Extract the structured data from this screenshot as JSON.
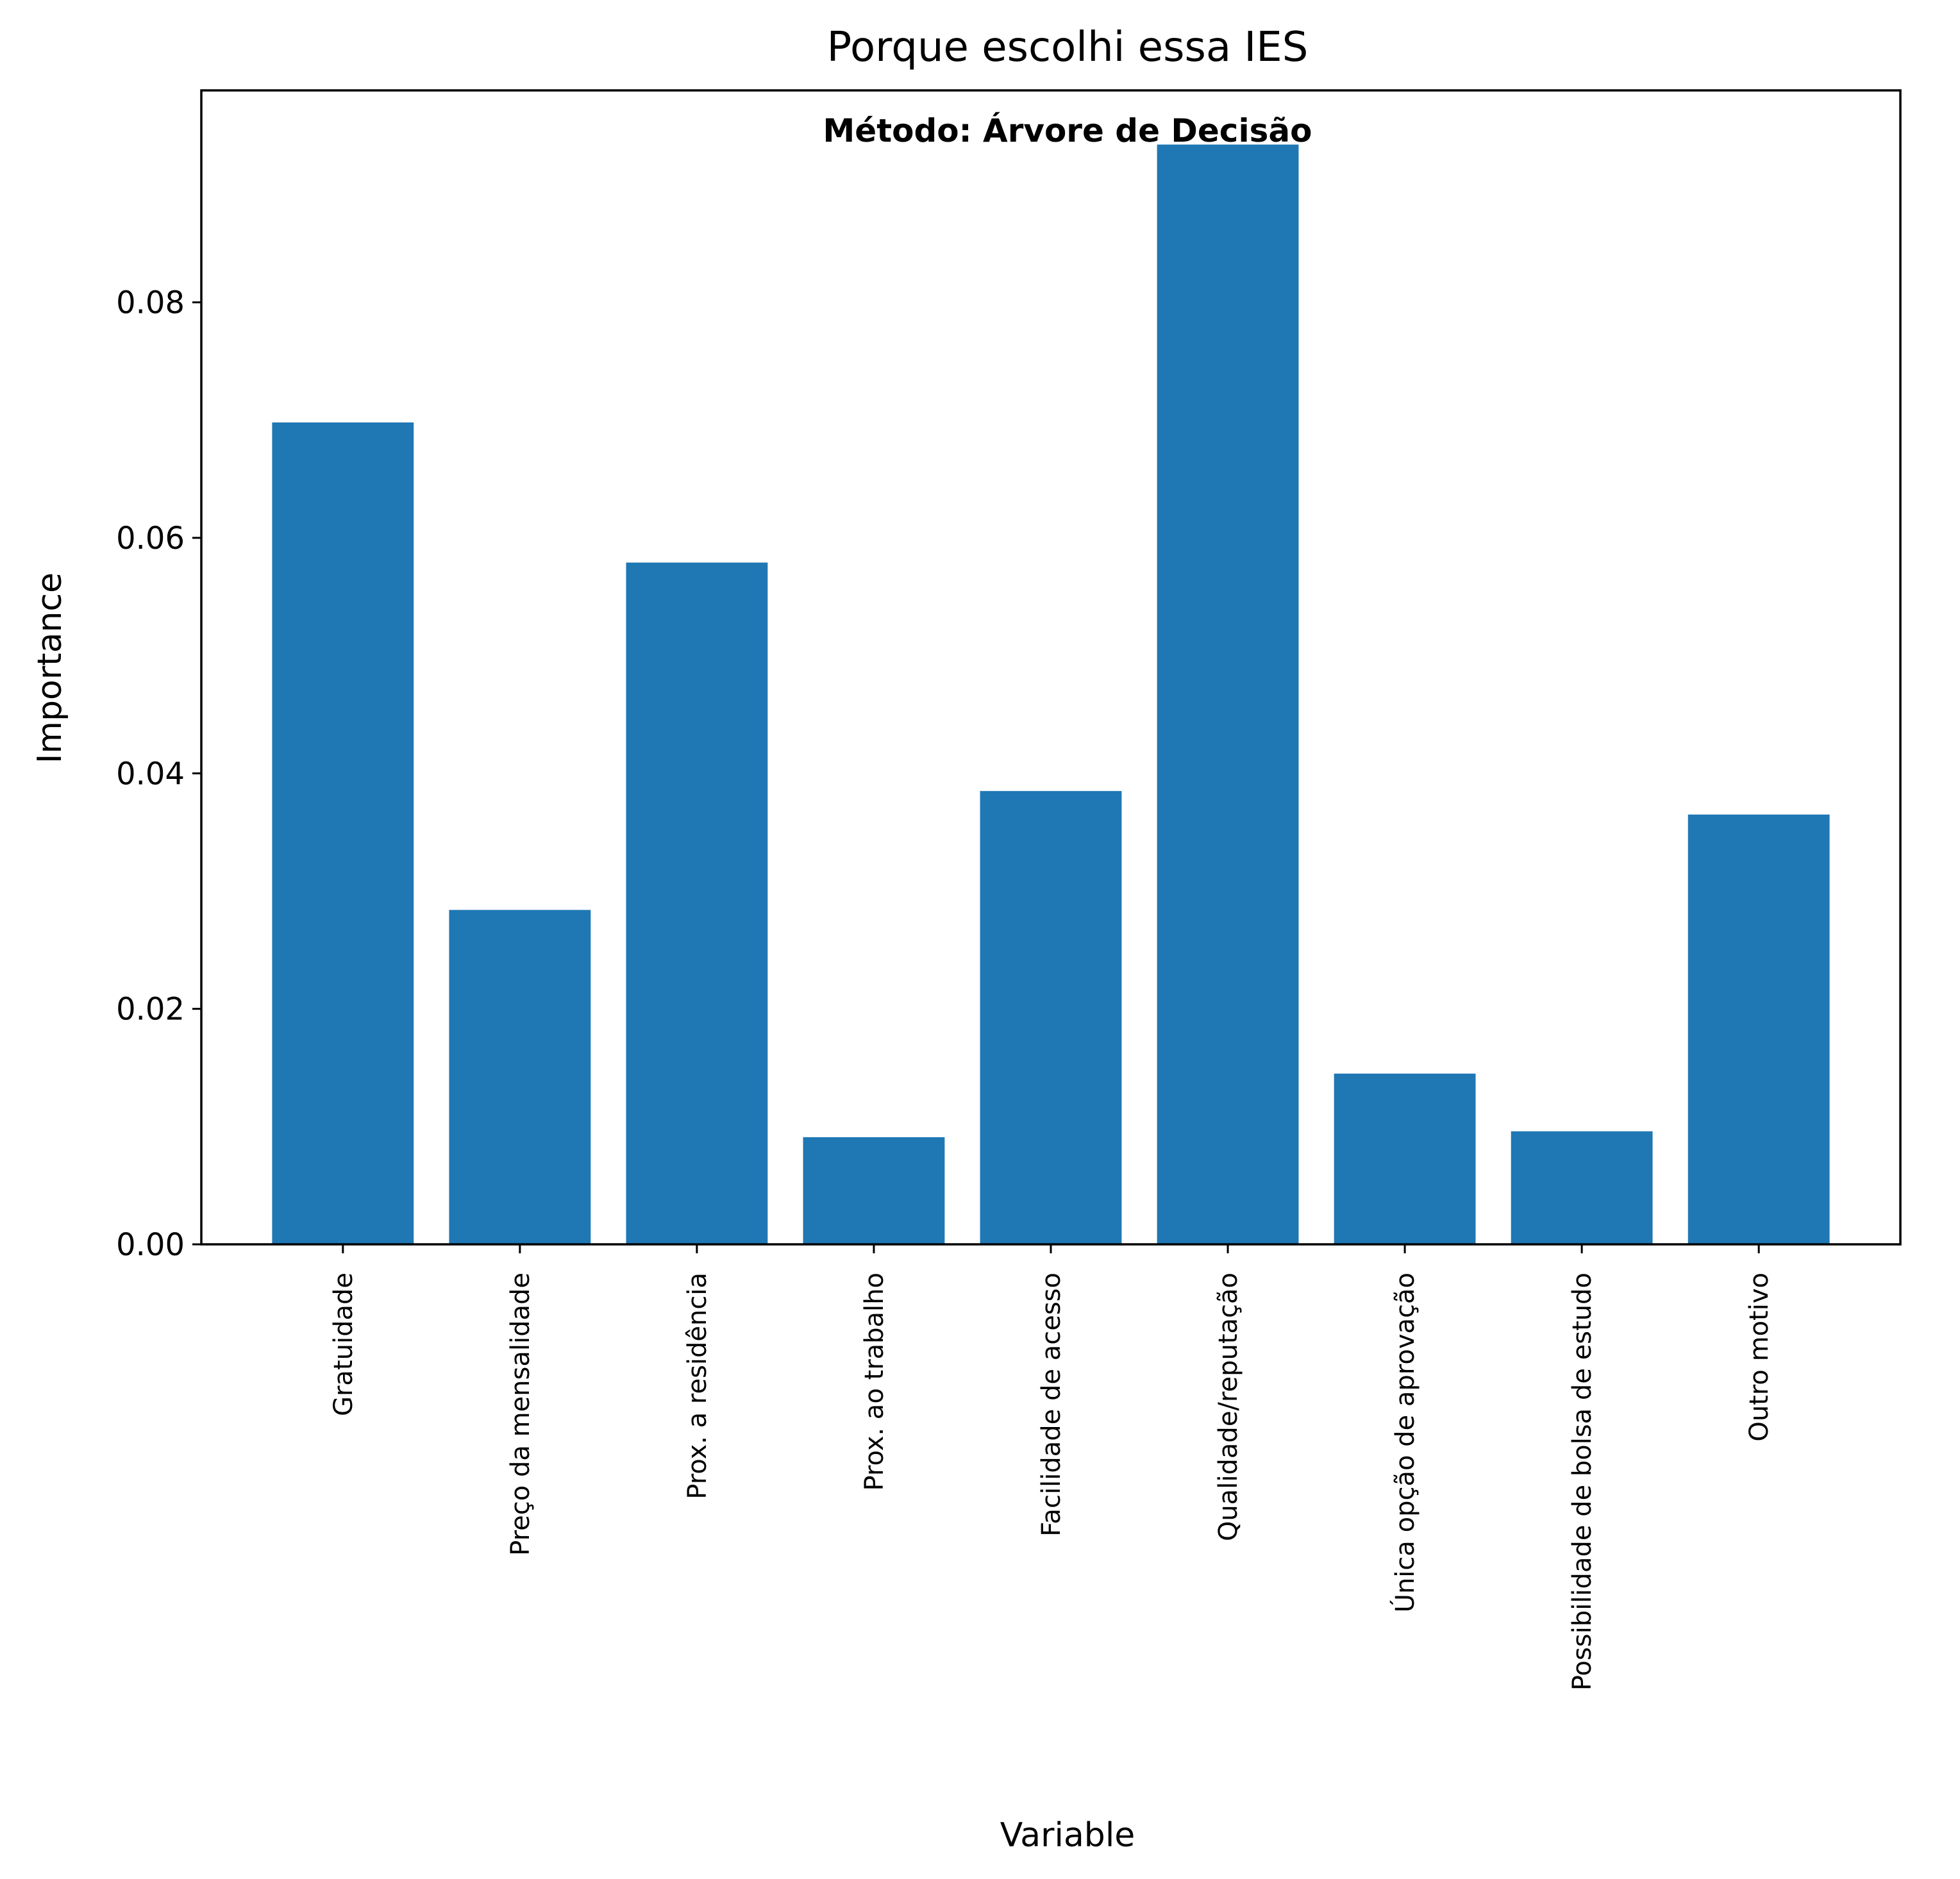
{
  "chart_data": {
    "type": "bar",
    "title": "Porque escolhi essa IES",
    "annotation": "Método: Árvore de Decisão",
    "xlabel": "Variable",
    "ylabel": "Importance",
    "categories": [
      "Gratuidade",
      "Preço da mensalidade",
      "Prox. a residência",
      "Prox. ao trabalho",
      "Facilidade de acesso",
      "Qualidade/reputação",
      "Única opção de aprovação",
      "Possibilidade de bolsa de estudo",
      "Outro motivo"
    ],
    "values": [
      0.0698,
      0.0284,
      0.0579,
      0.0091,
      0.0385,
      0.0934,
      0.0145,
      0.0096,
      0.0365
    ],
    "yticks": [
      "0.00",
      "0.02",
      "0.04",
      "0.06",
      "0.08"
    ],
    "ylim": [
      0,
      0.098
    ],
    "bar_color": "#1f77b4",
    "grid": false,
    "legend": "none"
  }
}
